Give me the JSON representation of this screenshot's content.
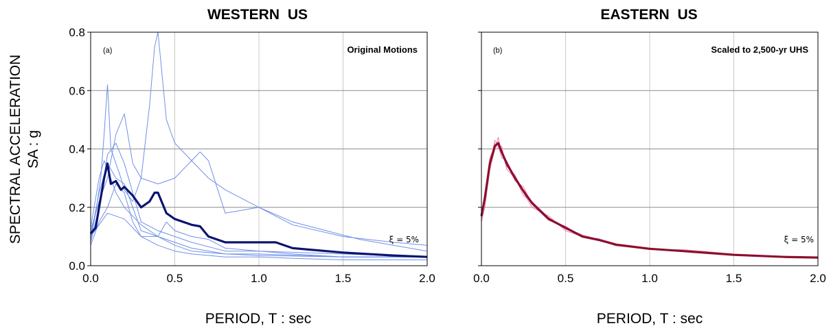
{
  "ylabel_line1": "SPECTRAL ACCELERATION",
  "ylabel_line2": "SA : g",
  "chart_data": [
    {
      "type": "line",
      "title": "WESTERN US",
      "panel_tag": "(a)",
      "note": "Original Motions",
      "damping_label": "ξ = 5%",
      "xlabel": "PERIOD, T : sec",
      "xlim": [
        0,
        2.0
      ],
      "ylim": [
        0,
        0.8
      ],
      "xticks": [
        "0.0",
        "0.5",
        "1.0",
        "1.5",
        "2.0"
      ],
      "yticks": [
        "0.0",
        "0.2",
        "0.4",
        "0.6",
        "0.8"
      ],
      "grid": true,
      "colors": {
        "individual": "#6f8fe8",
        "mean": "#0b1470"
      },
      "series": [
        {
          "role": "record",
          "x": [
            0,
            0.03,
            0.06,
            0.08,
            0.1,
            0.12,
            0.15,
            0.18,
            0.2,
            0.25,
            0.3,
            0.35,
            0.38,
            0.4,
            0.45,
            0.5,
            0.6,
            0.7,
            0.8,
            1.0,
            1.2,
            1.5,
            1.8,
            2.0
          ],
          "y": [
            0.09,
            0.18,
            0.3,
            0.45,
            0.62,
            0.4,
            0.35,
            0.3,
            0.26,
            0.22,
            0.3,
            0.55,
            0.75,
            0.8,
            0.5,
            0.42,
            0.36,
            0.3,
            0.26,
            0.2,
            0.14,
            0.1,
            0.08,
            0.07
          ]
        },
        {
          "role": "record",
          "x": [
            0,
            0.05,
            0.1,
            0.15,
            0.2,
            0.25,
            0.3,
            0.4,
            0.5,
            0.6,
            0.65,
            0.7,
            0.8,
            1.0,
            1.2,
            1.4,
            1.6,
            1.8,
            2.0
          ],
          "y": [
            0.12,
            0.22,
            0.3,
            0.45,
            0.52,
            0.35,
            0.3,
            0.28,
            0.3,
            0.36,
            0.39,
            0.36,
            0.18,
            0.2,
            0.15,
            0.12,
            0.09,
            0.07,
            0.05
          ]
        },
        {
          "role": "record",
          "x": [
            0,
            0.05,
            0.1,
            0.15,
            0.2,
            0.25,
            0.3,
            0.4,
            0.5,
            0.6,
            0.8,
            1.0,
            1.2,
            1.5,
            2.0
          ],
          "y": [
            0.08,
            0.2,
            0.38,
            0.42,
            0.35,
            0.25,
            0.15,
            0.12,
            0.1,
            0.08,
            0.05,
            0.05,
            0.04,
            0.03,
            0.03
          ]
        },
        {
          "role": "record",
          "x": [
            0,
            0.05,
            0.1,
            0.15,
            0.2,
            0.25,
            0.3,
            0.4,
            0.5,
            0.6,
            0.8,
            1.0,
            1.5,
            2.0
          ],
          "y": [
            0.1,
            0.25,
            0.35,
            0.3,
            0.28,
            0.2,
            0.12,
            0.1,
            0.07,
            0.05,
            0.04,
            0.04,
            0.03,
            0.03
          ]
        },
        {
          "role": "record",
          "x": [
            0,
            0.05,
            0.08,
            0.1,
            0.15,
            0.2,
            0.3,
            0.4,
            0.5,
            0.6,
            0.8,
            1.0,
            1.5,
            2.0
          ],
          "y": [
            0.13,
            0.3,
            0.36,
            0.33,
            0.25,
            0.2,
            0.14,
            0.1,
            0.08,
            0.06,
            0.04,
            0.035,
            0.03,
            0.03
          ]
        },
        {
          "role": "record",
          "x": [
            0,
            0.05,
            0.1,
            0.15,
            0.2,
            0.25,
            0.3,
            0.4,
            0.45,
            0.5,
            0.6,
            0.7,
            0.8,
            1.0,
            1.5,
            2.0
          ],
          "y": [
            0.07,
            0.15,
            0.2,
            0.28,
            0.25,
            0.15,
            0.1,
            0.1,
            0.15,
            0.12,
            0.1,
            0.09,
            0.06,
            0.05,
            0.04,
            0.03
          ]
        },
        {
          "role": "record",
          "x": [
            0,
            0.05,
            0.1,
            0.2,
            0.3,
            0.4,
            0.5,
            0.6,
            0.8,
            1.0,
            1.2,
            1.5,
            2.0
          ],
          "y": [
            0.1,
            0.14,
            0.18,
            0.16,
            0.1,
            0.07,
            0.05,
            0.04,
            0.03,
            0.03,
            0.025,
            0.02,
            0.02
          ]
        },
        {
          "role": "mean",
          "x": [
            0,
            0.03,
            0.05,
            0.08,
            0.1,
            0.12,
            0.15,
            0.18,
            0.2,
            0.25,
            0.3,
            0.35,
            0.38,
            0.4,
            0.45,
            0.5,
            0.6,
            0.65,
            0.7,
            0.8,
            0.9,
            1.0,
            1.1,
            1.2,
            1.5,
            1.8,
            2.0
          ],
          "y": [
            0.11,
            0.13,
            0.2,
            0.3,
            0.35,
            0.28,
            0.29,
            0.26,
            0.27,
            0.24,
            0.2,
            0.22,
            0.25,
            0.25,
            0.18,
            0.16,
            0.14,
            0.135,
            0.1,
            0.08,
            0.08,
            0.08,
            0.08,
            0.06,
            0.045,
            0.035,
            0.03
          ]
        }
      ]
    },
    {
      "type": "line",
      "title": "EASTERN US",
      "panel_tag": "(b)",
      "note": "Scaled to 2,500-yr UHS",
      "damping_label": "ξ = 5%",
      "xlabel": "PERIOD, T : sec",
      "xlim": [
        0,
        2.0
      ],
      "ylim": [
        0,
        0.8
      ],
      "xticks": [
        "0.0",
        "0.5",
        "1.0",
        "1.5",
        "2.0"
      ],
      "yticks": [
        "0.0",
        "0.2",
        "0.4",
        "0.6",
        "0.8"
      ],
      "grid": true,
      "colors": {
        "individual": "#f07fb0",
        "mean": "#8a0f2e"
      },
      "series": [
        {
          "role": "record",
          "x": [
            0,
            0.02,
            0.05,
            0.08,
            0.1,
            0.12,
            0.15,
            0.2,
            0.25,
            0.3,
            0.4,
            0.5,
            0.6,
            0.7,
            0.8,
            1.0,
            1.2,
            1.5,
            1.8,
            2.0
          ],
          "y": [
            0.16,
            0.22,
            0.35,
            0.43,
            0.41,
            0.37,
            0.36,
            0.3,
            0.26,
            0.22,
            0.16,
            0.13,
            0.105,
            0.09,
            0.072,
            0.058,
            0.05,
            0.037,
            0.03,
            0.028
          ]
        },
        {
          "role": "record",
          "x": [
            0,
            0.02,
            0.05,
            0.08,
            0.1,
            0.12,
            0.15,
            0.2,
            0.25,
            0.3,
            0.4,
            0.5,
            0.6,
            0.7,
            0.8,
            1.0,
            1.2,
            1.5,
            1.8,
            2.0
          ],
          "y": [
            0.18,
            0.25,
            0.37,
            0.41,
            0.42,
            0.4,
            0.34,
            0.31,
            0.25,
            0.2,
            0.17,
            0.12,
            0.1,
            0.085,
            0.07,
            0.055,
            0.055,
            0.04,
            0.032,
            0.03
          ]
        },
        {
          "role": "record",
          "x": [
            0,
            0.02,
            0.05,
            0.08,
            0.1,
            0.12,
            0.15,
            0.2,
            0.25,
            0.3,
            0.4,
            0.5,
            0.6,
            0.7,
            0.8,
            1.0,
            1.2,
            1.5,
            1.8,
            2.0
          ],
          "y": [
            0.15,
            0.2,
            0.33,
            0.4,
            0.44,
            0.39,
            0.35,
            0.29,
            0.27,
            0.21,
            0.155,
            0.135,
            0.098,
            0.092,
            0.075,
            0.06,
            0.048,
            0.036,
            0.029,
            0.027
          ]
        },
        {
          "role": "record",
          "x": [
            0,
            0.02,
            0.05,
            0.08,
            0.1,
            0.12,
            0.15,
            0.2,
            0.25,
            0.3,
            0.4,
            0.5,
            0.6,
            0.7,
            0.8,
            1.0,
            1.2,
            1.5,
            1.8,
            2.0
          ],
          "y": [
            0.17,
            0.24,
            0.36,
            0.42,
            0.4,
            0.41,
            0.33,
            0.3,
            0.24,
            0.22,
            0.165,
            0.125,
            0.103,
            0.088,
            0.068,
            0.057,
            0.051,
            0.038,
            0.031,
            0.029
          ]
        },
        {
          "role": "mean",
          "x": [
            0,
            0.02,
            0.05,
            0.08,
            0.1,
            0.12,
            0.15,
            0.2,
            0.25,
            0.3,
            0.4,
            0.5,
            0.6,
            0.7,
            0.8,
            1.0,
            1.2,
            1.5,
            1.8,
            2.0
          ],
          "y": [
            0.17,
            0.23,
            0.35,
            0.41,
            0.42,
            0.39,
            0.35,
            0.3,
            0.255,
            0.215,
            0.16,
            0.13,
            0.1,
            0.088,
            0.072,
            0.058,
            0.05,
            0.037,
            0.03,
            0.028
          ]
        }
      ]
    }
  ]
}
